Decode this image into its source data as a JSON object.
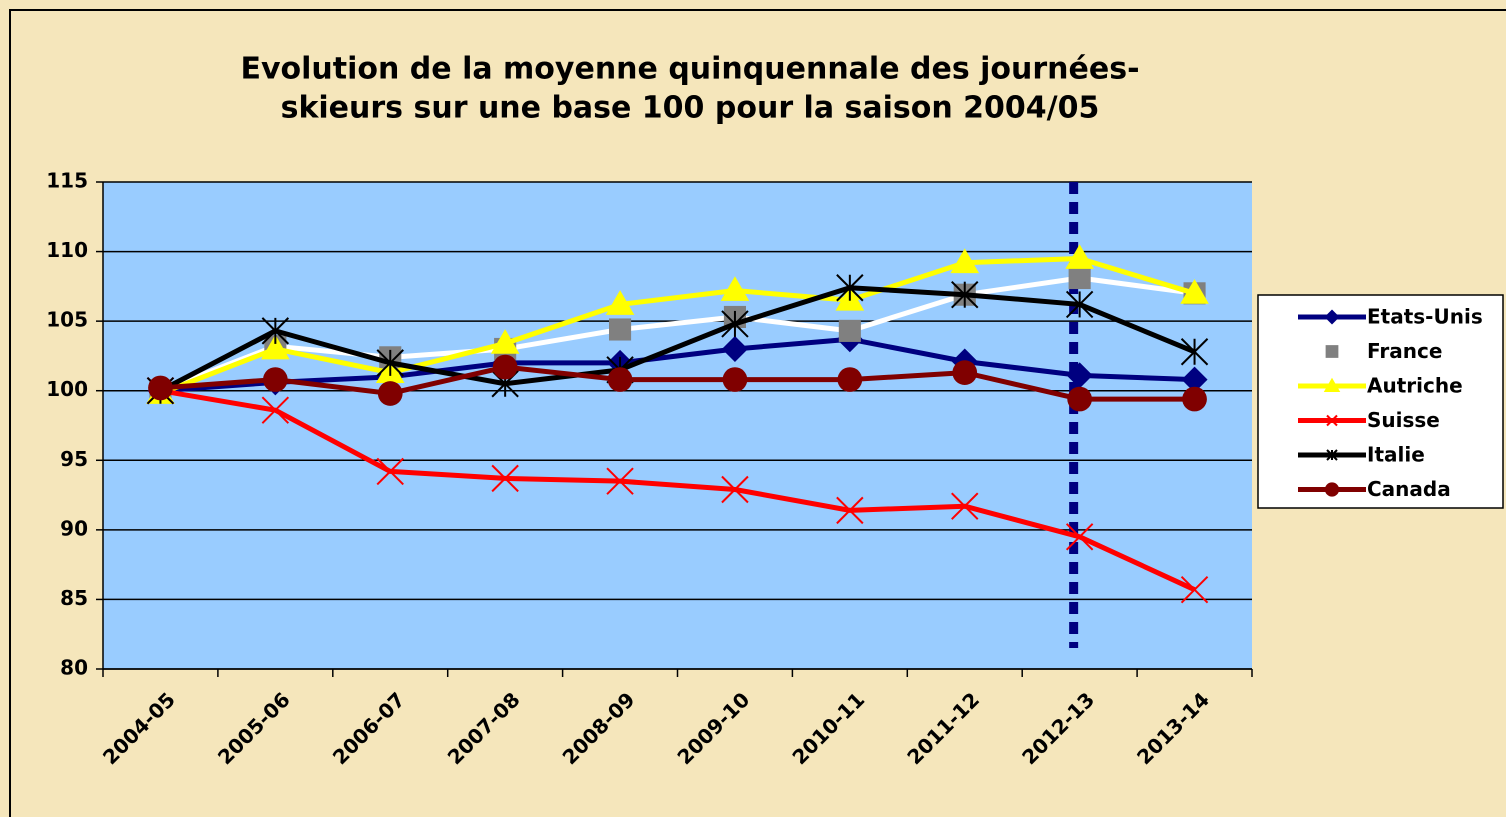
{
  "chart_data": {
    "type": "line",
    "title": [
      "Evolution de la moyenne quinquennale des journées-",
      "skieurs sur une base 100 pour la saison 2004/05"
    ],
    "categories": [
      "2004-05",
      "2005-06",
      "2006-07",
      "2007-08",
      "2008-09",
      "2009-10",
      "2010-11",
      "2011-12",
      "2012-13",
      "2013-14"
    ],
    "ylim": [
      80,
      115
    ],
    "yticks": [
      80,
      85,
      90,
      95,
      100,
      105,
      110,
      115
    ],
    "grid": true,
    "legend": "right",
    "series": [
      {
        "name": "Etats-Unis",
        "color": "#000080",
        "marker": "diamond",
        "marker_color": "#000080",
        "values": [
          100,
          100.6,
          101,
          102,
          102,
          103,
          103.7,
          102.1,
          101.1,
          100.8
        ]
      },
      {
        "name": "France",
        "color": "#ffffff",
        "marker": "square",
        "marker_color": "#808080",
        "values": [
          100,
          103.2,
          102.4,
          103,
          104.4,
          105.3,
          104.3,
          106.9,
          108.1,
          107
        ]
      },
      {
        "name": "Autriche",
        "color": "#ffff00",
        "marker": "triangle",
        "marker_color": "#ffff00",
        "values": [
          99.8,
          103,
          101.3,
          103.4,
          106.2,
          107.2,
          106.5,
          109.2,
          109.5,
          107
        ]
      },
      {
        "name": "Suisse",
        "color": "#ff0000",
        "marker": "x",
        "marker_color": "#ff0000",
        "values": [
          100,
          98.6,
          94.2,
          93.7,
          93.5,
          92.9,
          91.4,
          91.7,
          89.5,
          85.7
        ]
      },
      {
        "name": "Italie",
        "color": "#000000",
        "marker": "asterisk",
        "marker_color": "#000000",
        "values": [
          100,
          104.3,
          102,
          100.5,
          101.5,
          104.8,
          107.4,
          106.9,
          106.2,
          102.8
        ]
      },
      {
        "name": "Canada",
        "color": "#800000",
        "marker": "circle",
        "marker_color": "#800000",
        "values": [
          100.2,
          100.8,
          99.8,
          101.7,
          100.8,
          100.8,
          100.8,
          101.3,
          99.4,
          99.4
        ]
      }
    ]
  }
}
